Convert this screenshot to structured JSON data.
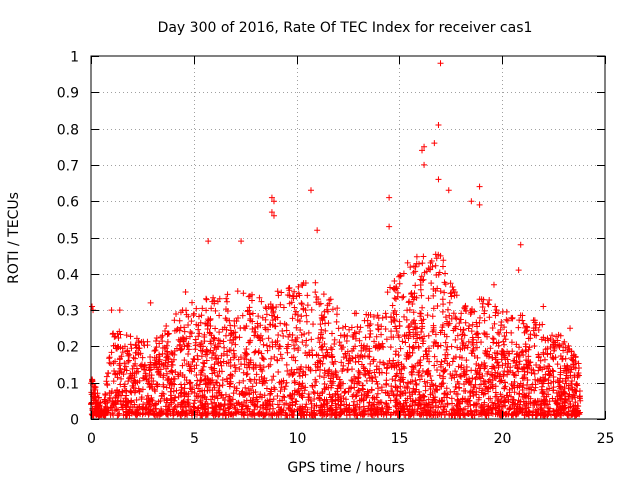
{
  "chart_data": {
    "type": "scatter",
    "title": "Day 300 of 2016, Rate Of TEC Index for receiver cas1",
    "xlabel": "GPS time / hours",
    "ylabel": "ROTI / TECUs",
    "xlim": [
      0,
      25
    ],
    "ylim": [
      0,
      1
    ],
    "grid": true,
    "marker": "+",
    "color": "#ff0000",
    "x_ticks": [
      0,
      5,
      10,
      15,
      20,
      25
    ],
    "x_tick_labels": [
      "0",
      "5",
      "10",
      "15",
      "20",
      "25"
    ],
    "y_ticks": [
      0,
      0.1,
      0.2,
      0.3,
      0.4,
      0.5,
      0.6,
      0.7,
      0.8,
      0.9,
      1
    ],
    "y_tick_labels": [
      "0",
      "0.1",
      "0.2",
      "0.3",
      "0.4",
      "0.5",
      "0.6",
      "0.7",
      "0.8",
      "0.9",
      "1"
    ],
    "notable_points": [
      {
        "x": 0.05,
        "y": 0.31
      },
      {
        "x": 0.1,
        "y": 0.3
      },
      {
        "x": 5.7,
        "y": 0.49
      },
      {
        "x": 7.3,
        "y": 0.49
      },
      {
        "x": 8.8,
        "y": 0.61
      },
      {
        "x": 8.9,
        "y": 0.6
      },
      {
        "x": 8.8,
        "y": 0.57
      },
      {
        "x": 8.9,
        "y": 0.56
      },
      {
        "x": 10.7,
        "y": 0.63
      },
      {
        "x": 11.0,
        "y": 0.52
      },
      {
        "x": 14.5,
        "y": 0.61
      },
      {
        "x": 14.5,
        "y": 0.53
      },
      {
        "x": 16.1,
        "y": 0.74
      },
      {
        "x": 16.2,
        "y": 0.75
      },
      {
        "x": 16.2,
        "y": 0.7
      },
      {
        "x": 16.7,
        "y": 0.76
      },
      {
        "x": 16.9,
        "y": 0.81
      },
      {
        "x": 17.0,
        "y": 0.98
      },
      {
        "x": 16.9,
        "y": 0.66
      },
      {
        "x": 17.4,
        "y": 0.63
      },
      {
        "x": 18.5,
        "y": 0.6
      },
      {
        "x": 18.9,
        "y": 0.64
      },
      {
        "x": 18.9,
        "y": 0.59
      },
      {
        "x": 20.9,
        "y": 0.48
      },
      {
        "x": 20.8,
        "y": 0.41
      },
      {
        "x": 19.6,
        "y": 0.37
      },
      {
        "x": 22.0,
        "y": 0.31
      },
      {
        "x": 23.3,
        "y": 0.25
      },
      {
        "x": 4.6,
        "y": 0.35
      },
      {
        "x": 2.9,
        "y": 0.32
      },
      {
        "x": 1.4,
        "y": 0.3
      },
      {
        "x": 1.0,
        "y": 0.3
      }
    ],
    "envelope": {
      "description": "upper envelope of dense scatter, (hour, typical_max_roti)",
      "points": [
        [
          0.0,
          0.12
        ],
        [
          0.6,
          0.02
        ],
        [
          1.0,
          0.25
        ],
        [
          2.0,
          0.22
        ],
        [
          3.0,
          0.2
        ],
        [
          4.0,
          0.28
        ],
        [
          5.0,
          0.32
        ],
        [
          6.0,
          0.33
        ],
        [
          7.0,
          0.35
        ],
        [
          8.0,
          0.33
        ],
        [
          9.0,
          0.35
        ],
        [
          10.0,
          0.36
        ],
        [
          11.0,
          0.38
        ],
        [
          12.0,
          0.3
        ],
        [
          13.0,
          0.28
        ],
        [
          14.0,
          0.3
        ],
        [
          15.0,
          0.4
        ],
        [
          16.0,
          0.45
        ],
        [
          17.0,
          0.45
        ],
        [
          18.0,
          0.3
        ],
        [
          19.0,
          0.33
        ],
        [
          20.0,
          0.3
        ],
        [
          21.0,
          0.28
        ],
        [
          22.0,
          0.25
        ],
        [
          23.0,
          0.22
        ],
        [
          23.8,
          0.15
        ]
      ],
      "x_range": [
        0.0,
        23.8
      ]
    }
  }
}
